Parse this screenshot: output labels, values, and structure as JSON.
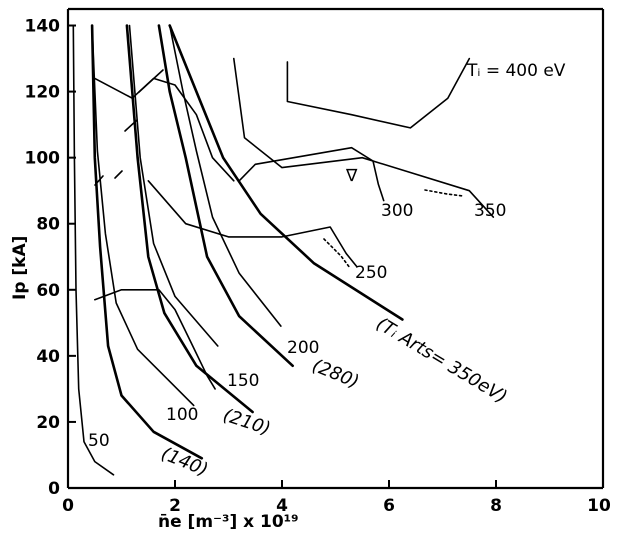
{
  "chart_data": {
    "type": "line",
    "title": "",
    "xlabel": "n̄e  [m⁻³]  x 10¹⁹",
    "ylabel": "Ip [kA]",
    "xlim": [
      0,
      10
    ],
    "ylim": [
      0,
      145
    ],
    "x_ticks": [
      "0",
      "2",
      "4",
      "6",
      "8",
      "10"
    ],
    "y_ticks": [
      "0",
      "20",
      "40",
      "60",
      "80",
      "100",
      "120",
      "140"
    ],
    "grid": false,
    "series": [
      {
        "name": "50",
        "style": "thin",
        "points": [
          [
            0.85,
            4
          ],
          [
            0.5,
            8
          ],
          [
            0.3,
            14
          ],
          [
            0.2,
            30
          ],
          [
            0.15,
            60
          ],
          [
            0.12,
            100
          ],
          [
            0.1,
            140
          ]
        ]
      },
      {
        "name": "100",
        "style": "thin",
        "points": [
          [
            2.35,
            25
          ],
          [
            1.3,
            42
          ],
          [
            0.9,
            56
          ],
          [
            0.7,
            77
          ],
          [
            0.55,
            102
          ],
          [
            0.45,
            140
          ]
        ]
      },
      {
        "name": "150",
        "style": "thin",
        "points": [
          [
            2.8,
            43
          ],
          [
            2.0,
            58
          ],
          [
            1.6,
            74
          ],
          [
            1.35,
            100
          ],
          [
            1.15,
            140
          ]
        ]
      },
      {
        "name": "200",
        "style": "thin",
        "points": [
          [
            3.98,
            49
          ],
          [
            3.2,
            65
          ],
          [
            2.7,
            82
          ],
          [
            2.4,
            102
          ],
          [
            2.15,
            120
          ],
          [
            1.9,
            140
          ]
        ]
      },
      {
        "name": "(Ti Arts=350eV)",
        "style": "thick",
        "points": [
          [
            6.25,
            51
          ],
          [
            4.6,
            68
          ],
          [
            3.6,
            83
          ],
          [
            2.9,
            100
          ],
          [
            2.4,
            120
          ],
          [
            1.9,
            140
          ]
        ]
      },
      {
        "name": "(280)",
        "style": "thick",
        "points": [
          [
            4.2,
            37
          ],
          [
            3.2,
            52
          ],
          [
            2.6,
            70
          ],
          [
            2.2,
            100
          ],
          [
            1.9,
            120
          ],
          [
            1.7,
            140
          ]
        ]
      },
      {
        "name": "(210)",
        "style": "thick",
        "points": [
          [
            3.45,
            23
          ],
          [
            2.4,
            37
          ],
          [
            1.8,
            53
          ],
          [
            1.5,
            70
          ],
          [
            1.3,
            100
          ],
          [
            1.1,
            140
          ]
        ]
      },
      {
        "name": "(140)",
        "style": "thick",
        "points": [
          [
            2.5,
            9
          ],
          [
            1.6,
            17
          ],
          [
            1.0,
            28
          ],
          [
            0.75,
            43
          ],
          [
            0.6,
            73
          ],
          [
            0.5,
            100
          ],
          [
            0.45,
            140
          ]
        ]
      },
      {
        "name": "250",
        "style": "thin",
        "points": [
          [
            0.5,
            57
          ],
          [
            1.0,
            60
          ],
          [
            1.7,
            60
          ],
          [
            2.0,
            54
          ],
          [
            2.3,
            44
          ],
          [
            2.6,
            34
          ],
          [
            2.75,
            30
          ]
        ]
      },
      {
        "name": "250b",
        "style": "thin",
        "points": [
          [
            1.5,
            93
          ],
          [
            2.2,
            80
          ],
          [
            3.0,
            76
          ],
          [
            4.0,
            76
          ],
          [
            4.9,
            79
          ],
          [
            5.2,
            71
          ],
          [
            5.4,
            67
          ]
        ]
      },
      {
        "name": "300a",
        "style": "thin",
        "points": [
          [
            0.5,
            124
          ],
          [
            1.2,
            118
          ],
          [
            1.6,
            124
          ],
          [
            2.0,
            122
          ],
          [
            2.4,
            113
          ],
          [
            2.7,
            100
          ],
          [
            3.1,
            93
          ]
        ]
      },
      {
        "name": "300",
        "style": "thin",
        "points": [
          [
            3.2,
            93
          ],
          [
            3.5,
            98
          ],
          [
            5.3,
            103
          ],
          [
            5.7,
            99
          ],
          [
            5.8,
            92
          ],
          [
            5.9,
            87
          ]
        ]
      },
      {
        "name": "350",
        "style": "thin",
        "points": [
          [
            3.1,
            130
          ],
          [
            3.3,
            106
          ],
          [
            4.0,
            97
          ],
          [
            5.5,
            100
          ],
          [
            6.3,
            96
          ],
          [
            7.5,
            90
          ],
          [
            7.95,
            82
          ]
        ]
      },
      {
        "name": "Ti=400eV",
        "style": "thin",
        "points": [
          [
            4.1,
            129
          ],
          [
            4.1,
            117
          ],
          [
            5.3,
            113
          ],
          [
            6.4,
            109
          ],
          [
            7.1,
            118
          ],
          [
            7.5,
            130
          ]
        ]
      }
    ],
    "annotations": {
      "label_50": "50",
      "label_100": "100",
      "label_150": "150",
      "label_200": "200",
      "label_250": "250",
      "label_300": "300",
      "label_350": "350",
      "label_400": "Tᵢ = 400 eV",
      "label_140": "(140)",
      "label_210": "(210)",
      "label_280": "(280)",
      "label_arts": "(Tᵢ Arts= 350eV)",
      "marker": "∇"
    }
  }
}
